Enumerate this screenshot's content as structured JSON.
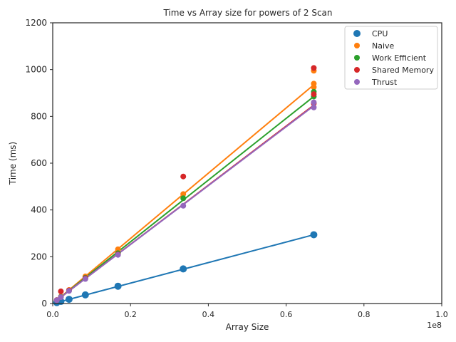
{
  "chart_data": {
    "type": "scatter",
    "title": "Time vs Array size for powers of 2 Scan",
    "xlabel": "Array Size",
    "ylabel": "Time (ms)",
    "x_offset_label": "1e8",
    "xlim": [
      0,
      100000000
    ],
    "ylim": [
      0,
      1200
    ],
    "x_ticks": [
      0,
      20000000,
      40000000,
      60000000,
      80000000,
      100000000
    ],
    "x_tick_labels": [
      "0.0",
      "0.2",
      "0.4",
      "0.6",
      "0.8",
      "1.0"
    ],
    "y_ticks": [
      0,
      200,
      400,
      600,
      800,
      1000,
      1200
    ],
    "y_tick_labels": [
      "0",
      "200",
      "400",
      "600",
      "800",
      "1000",
      "1200"
    ],
    "grid": false,
    "legend_position": "top-right",
    "series": [
      {
        "name": "CPU",
        "color": "#1f77b4",
        "points": [
          {
            "x": 1048576,
            "y": 4
          },
          {
            "x": 2097152,
            "y": 9
          },
          {
            "x": 4194304,
            "y": 18
          },
          {
            "x": 8388608,
            "y": 37
          },
          {
            "x": 16777216,
            "y": 74
          },
          {
            "x": 33554432,
            "y": 148
          },
          {
            "x": 67108864,
            "y": 294
          }
        ],
        "fit": {
          "x": [
            1048576,
            67108864
          ],
          "y": [
            4,
            294
          ]
        }
      },
      {
        "name": "Naive",
        "color": "#ff7f0e",
        "points": [
          {
            "x": 1048576,
            "y": 14
          },
          {
            "x": 2097152,
            "y": 30
          },
          {
            "x": 4194304,
            "y": 58
          },
          {
            "x": 8388608,
            "y": 116
          },
          {
            "x": 16777216,
            "y": 232
          },
          {
            "x": 33554432,
            "y": 468
          },
          {
            "x": 67108864,
            "y": 940
          },
          {
            "x": 67108864,
            "y": 995
          },
          {
            "x": 67108864,
            "y": 925
          }
        ],
        "fit": {
          "x": [
            1048576,
            67108864
          ],
          "y": [
            14,
            935
          ]
        }
      },
      {
        "name": "Work Efficient",
        "color": "#2ca02c",
        "points": [
          {
            "x": 1048576,
            "y": 14
          },
          {
            "x": 2097152,
            "y": 28
          },
          {
            "x": 4194304,
            "y": 55
          },
          {
            "x": 8388608,
            "y": 110
          },
          {
            "x": 16777216,
            "y": 215
          },
          {
            "x": 33554432,
            "y": 450
          },
          {
            "x": 67108864,
            "y": 885
          },
          {
            "x": 67108864,
            "y": 905
          }
        ],
        "fit": {
          "x": [
            1048576,
            67108864
          ],
          "y": [
            14,
            885
          ]
        }
      },
      {
        "name": "Shared Memory",
        "color": "#d62728",
        "points": [
          {
            "x": 1048576,
            "y": 15
          },
          {
            "x": 2097152,
            "y": 52
          },
          {
            "x": 4194304,
            "y": 56
          },
          {
            "x": 8388608,
            "y": 108
          },
          {
            "x": 16777216,
            "y": 210
          },
          {
            "x": 33554432,
            "y": 543
          },
          {
            "x": 67108864,
            "y": 1007
          },
          {
            "x": 67108864,
            "y": 895
          },
          {
            "x": 67108864,
            "y": 855
          }
        ],
        "fit": {
          "x": [
            1048576,
            67108864
          ],
          "y": [
            14,
            848
          ]
        }
      },
      {
        "name": "Thrust",
        "color": "#9467bd",
        "points": [
          {
            "x": 1048576,
            "y": 14
          },
          {
            "x": 2097152,
            "y": 27
          },
          {
            "x": 4194304,
            "y": 54
          },
          {
            "x": 8388608,
            "y": 105
          },
          {
            "x": 16777216,
            "y": 208
          },
          {
            "x": 33554432,
            "y": 418
          },
          {
            "x": 67108864,
            "y": 838
          },
          {
            "x": 67108864,
            "y": 860
          }
        ],
        "fit": {
          "x": [
            1048576,
            67108864
          ],
          "y": [
            14,
            845
          ]
        }
      }
    ]
  }
}
